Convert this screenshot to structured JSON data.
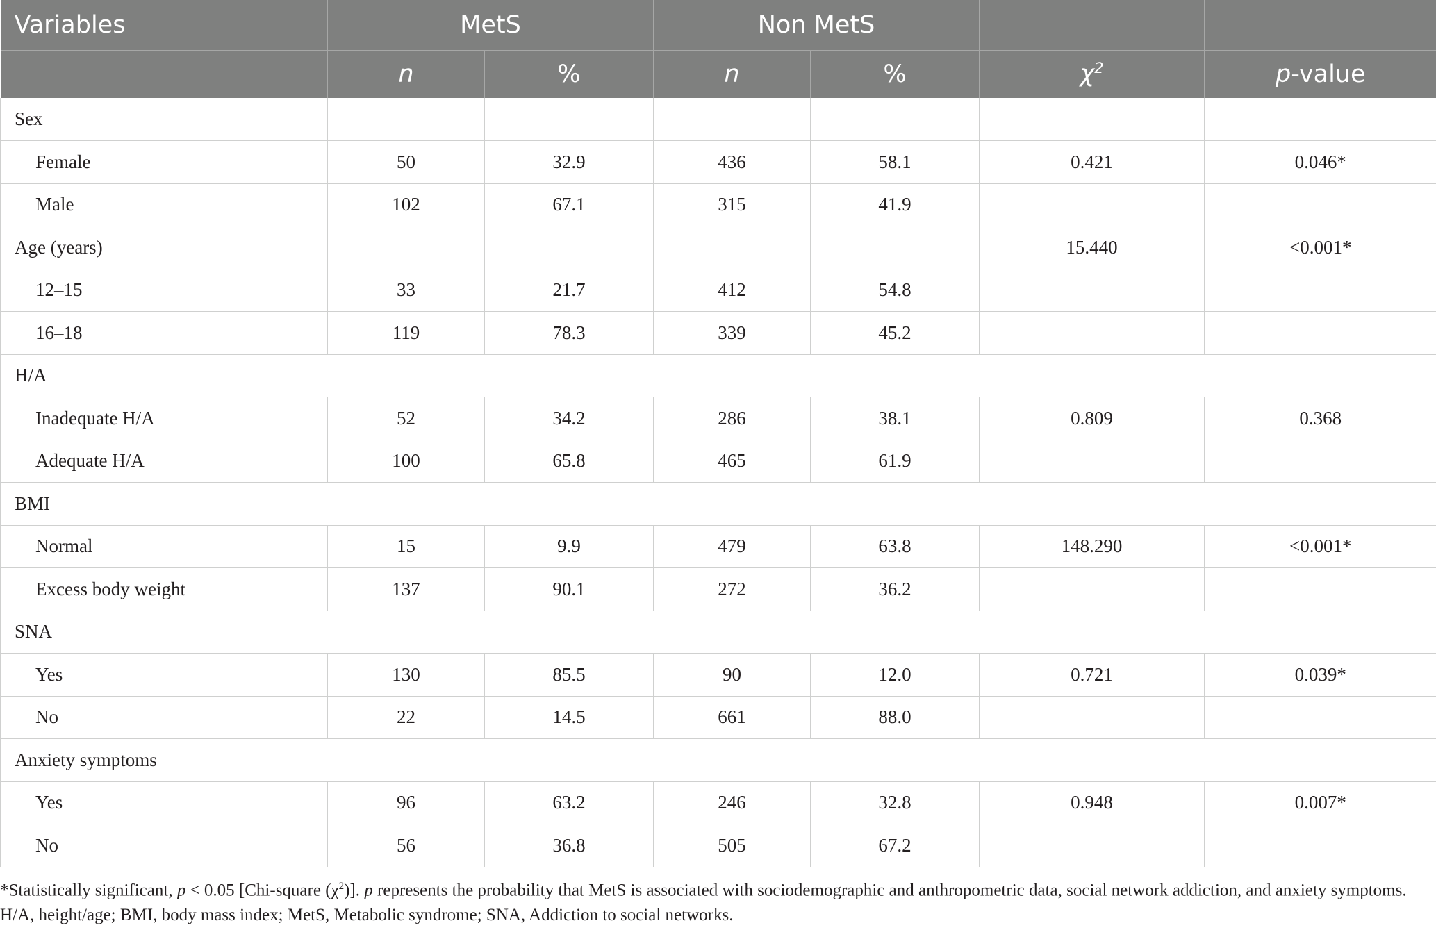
{
  "header": {
    "variables": "Variables",
    "mets": "MetS",
    "non_mets": "Non MetS",
    "n": "n",
    "pct": "%",
    "chi_symbol": "χ",
    "chi_sup": "2",
    "p_letter": "p",
    "p_rest": "-value"
  },
  "rows": [
    {
      "type": "cat",
      "label": "Sex",
      "boxed": true
    },
    {
      "type": "sub",
      "label": "Female",
      "mets_n": "50",
      "mets_pct": "32.9",
      "non_n": "436",
      "non_pct": "58.1",
      "chi": "0.421",
      "p": "0.046*"
    },
    {
      "type": "sub",
      "label": "Male",
      "mets_n": "102",
      "mets_pct": "67.1",
      "non_n": "315",
      "non_pct": "41.9",
      "chi": "",
      "p": ""
    },
    {
      "type": "cat",
      "label": "Age (years)",
      "boxed": true,
      "chi": "15.440",
      "p": "<0.001*"
    },
    {
      "type": "sub",
      "label": "12–15",
      "mets_n": "33",
      "mets_pct": "21.7",
      "non_n": "412",
      "non_pct": "54.8",
      "chi": "",
      "p": ""
    },
    {
      "type": "sub",
      "label": "16–18",
      "mets_n": "119",
      "mets_pct": "78.3",
      "non_n": "339",
      "non_pct": "45.2",
      "chi": "",
      "p": ""
    },
    {
      "type": "cat",
      "label": "H/A",
      "boxed": false
    },
    {
      "type": "sub",
      "label": "Inadequate H/A",
      "mets_n": "52",
      "mets_pct": "34.2",
      "non_n": "286",
      "non_pct": "38.1",
      "chi": "0.809",
      "p": "0.368"
    },
    {
      "type": "sub",
      "label": "Adequate H/A",
      "mets_n": "100",
      "mets_pct": "65.8",
      "non_n": "465",
      "non_pct": "61.9",
      "chi": "",
      "p": ""
    },
    {
      "type": "cat",
      "label": "BMI",
      "boxed": false
    },
    {
      "type": "sub",
      "label": "Normal",
      "mets_n": "15",
      "mets_pct": "9.9",
      "non_n": "479",
      "non_pct": "63.8",
      "chi": "148.290",
      "p": "<0.001*"
    },
    {
      "type": "sub",
      "label": "Excess body weight",
      "mets_n": "137",
      "mets_pct": "90.1",
      "non_n": "272",
      "non_pct": "36.2",
      "chi": "",
      "p": ""
    },
    {
      "type": "cat",
      "label": "SNA",
      "boxed": false
    },
    {
      "type": "sub",
      "label": "Yes",
      "mets_n": "130",
      "mets_pct": "85.5",
      "non_n": "90",
      "non_pct": "12.0",
      "chi": "0.721",
      "p": "0.039*"
    },
    {
      "type": "sub",
      "label": "No",
      "mets_n": "22",
      "mets_pct": "14.5",
      "non_n": "661",
      "non_pct": "88.0",
      "chi": "",
      "p": ""
    },
    {
      "type": "cat",
      "label": "Anxiety symptoms",
      "boxed": false
    },
    {
      "type": "sub",
      "label": "Yes",
      "mets_n": "96",
      "mets_pct": "63.2",
      "non_n": "246",
      "non_pct": "32.8",
      "chi": "0.948",
      "p": "0.007*"
    },
    {
      "type": "sub",
      "label": "No",
      "mets_n": "56",
      "mets_pct": "36.8",
      "non_n": "505",
      "non_pct": "67.2",
      "chi": "",
      "p": ""
    }
  ],
  "footnote": {
    "part1": "*Statistically significant, ",
    "p1": "p",
    "part2": " < 0.05 [Chi-square (χ",
    "sup": "2",
    "part3": ")]. ",
    "p2": "p",
    "part4": " represents the probability that MetS is associated with sociodemographic and anthropometric data, social network addiction, and anxiety symptoms. H/A, height/age; BMI, body mass index; MetS, Metabolic syndrome; SNA, Addiction to social networks."
  }
}
